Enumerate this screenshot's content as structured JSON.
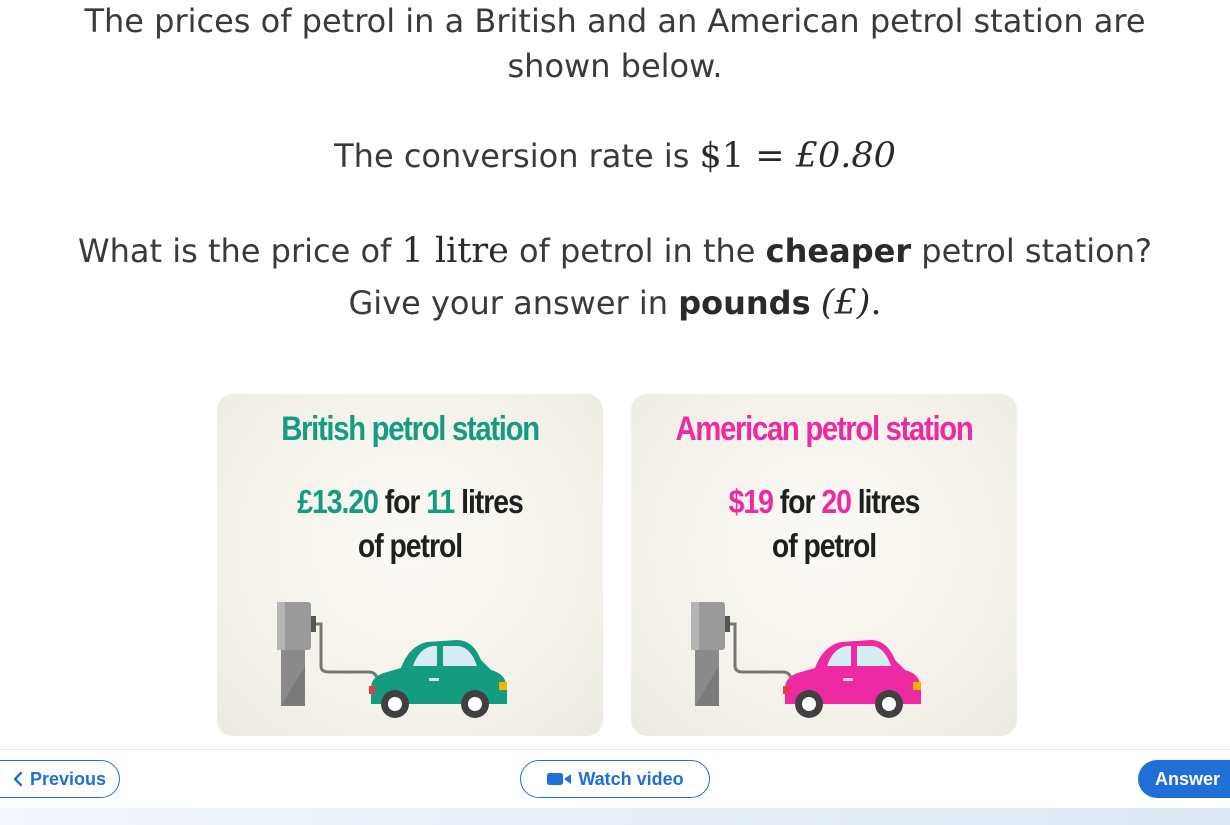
{
  "question": {
    "line1": "The prices of petrol in a British and an American petrol station are",
    "line2": "shown below.",
    "rate_prefix": "The conversion rate is ",
    "rate_math": {
      "lhs": "$1",
      "eq": " = ",
      "rhs": "£0.80"
    },
    "ask_prefix": "What is the price of ",
    "ask_quantity": "1",
    "ask_unit": " litre",
    "ask_mid": " of petrol in the ",
    "ask_bold": "cheaper",
    "ask_suffix": " petrol station?",
    "give_prefix": "Give your answer in ",
    "give_bold": "pounds",
    "give_symbol": "(£)",
    "give_end": "."
  },
  "cards": [
    {
      "title": "British petrol station",
      "price": "£13.20",
      "for": " for ",
      "quantity": "11",
      "unit": " litres",
      "line2": "of petrol",
      "car_color": "#159b7f"
    },
    {
      "title": "American petrol station",
      "price": "$19",
      "for": " for ",
      "quantity": "20",
      "unit": " litres",
      "line2": "of petrol",
      "car_color": "#ee2aa3"
    }
  ],
  "nav": {
    "previous_label": "Previous",
    "video_label": "Watch video",
    "answer_label": "Answer",
    "icons": [
      "chevron-left-icon",
      "video-camera-icon"
    ],
    "accent": "#1f6fd6"
  }
}
